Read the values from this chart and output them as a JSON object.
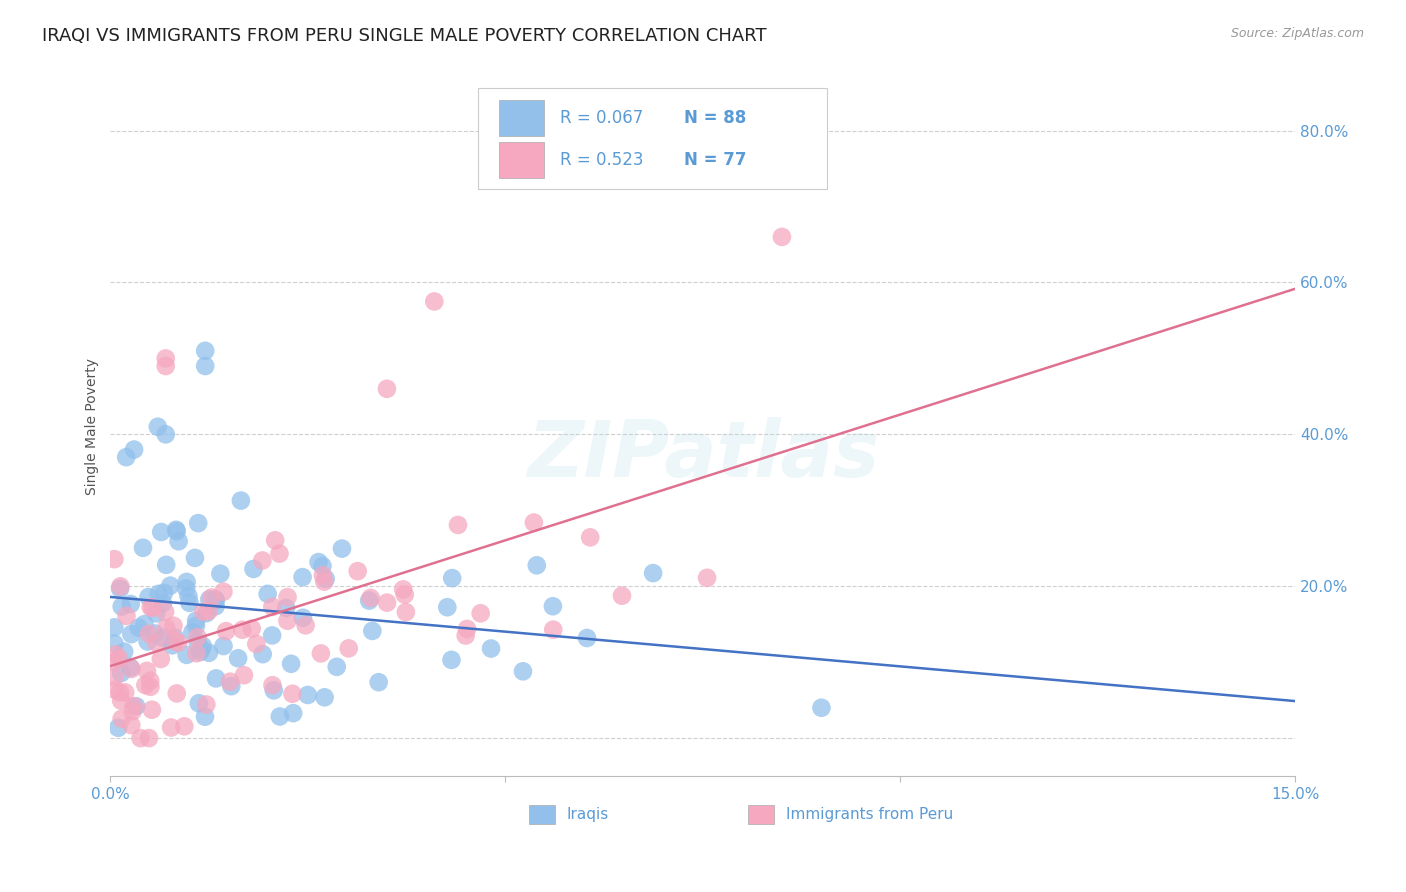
{
  "title": "IRAQI VS IMMIGRANTS FROM PERU SINGLE MALE POVERTY CORRELATION CHART",
  "source": "Source: ZipAtlas.com",
  "ylabel": "Single Male Poverty",
  "xlim": [
    0.0,
    0.15
  ],
  "ylim": [
    -0.05,
    0.87
  ],
  "yticks": [
    0.0,
    0.2,
    0.4,
    0.6,
    0.8
  ],
  "xticks": [
    0.0,
    0.05,
    0.1,
    0.15
  ],
  "legend_iraqi": "Iraqis",
  "legend_peru": "Immigrants from Peru",
  "R_iraqi": 0.067,
  "N_iraqi": 88,
  "R_peru": 0.523,
  "N_peru": 77,
  "color_iraqi": "#92c0eb",
  "color_peru": "#f5a8bf",
  "color_iraqi_line": "#4472c4",
  "color_peru_line": "#e07090",
  "color_tick_labels": "#5b9bd5",
  "watermark": "ZIPatlas",
  "background_color": "#ffffff",
  "grid_color": "#d0d0d0",
  "title_fontsize": 13,
  "axis_label_fontsize": 10,
  "tick_fontsize": 11
}
